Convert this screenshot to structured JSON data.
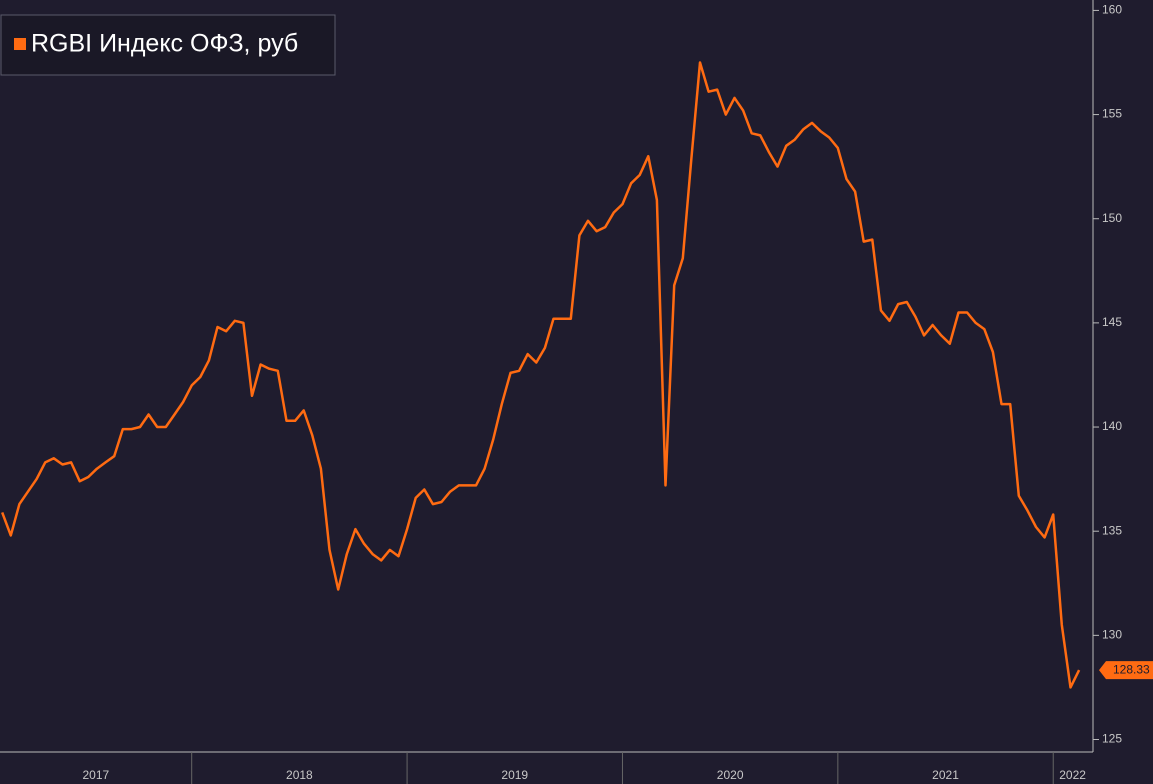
{
  "chart_data": {
    "type": "line",
    "x": [
      2017.12,
      2017.16,
      2017.2,
      2017.24,
      2017.28,
      2017.32,
      2017.36,
      2017.4,
      2017.44,
      2017.48,
      2017.52,
      2017.56,
      2017.6,
      2017.64,
      2017.68,
      2017.72,
      2017.76,
      2017.8,
      2017.84,
      2017.88,
      2017.92,
      2017.96,
      2018.0,
      2018.04,
      2018.08,
      2018.12,
      2018.16,
      2018.2,
      2018.24,
      2018.28,
      2018.32,
      2018.36,
      2018.4,
      2018.44,
      2018.48,
      2018.52,
      2018.56,
      2018.6,
      2018.64,
      2018.68,
      2018.72,
      2018.76,
      2018.8,
      2018.84,
      2018.88,
      2018.92,
      2018.96,
      2019.0,
      2019.04,
      2019.08,
      2019.12,
      2019.16,
      2019.2,
      2019.24,
      2019.28,
      2019.32,
      2019.36,
      2019.4,
      2019.44,
      2019.48,
      2019.52,
      2019.56,
      2019.6,
      2019.64,
      2019.68,
      2019.72,
      2019.76,
      2019.8,
      2019.84,
      2019.88,
      2019.92,
      2019.96,
      2020.0,
      2020.04,
      2020.08,
      2020.12,
      2020.16,
      2020.2,
      2020.24,
      2020.28,
      2020.32,
      2020.36,
      2020.4,
      2020.44,
      2020.48,
      2020.52,
      2020.56,
      2020.6,
      2020.64,
      2020.68,
      2020.72,
      2020.76,
      2020.8,
      2020.84,
      2020.88,
      2020.92,
      2020.96,
      2021.0,
      2021.04,
      2021.08,
      2021.12,
      2021.16,
      2021.2,
      2021.24,
      2021.28,
      2021.32,
      2021.36,
      2021.4,
      2021.44,
      2021.48,
      2021.52,
      2021.56,
      2021.6,
      2021.64,
      2021.68,
      2021.72,
      2021.76,
      2021.8,
      2021.84,
      2021.88,
      2021.92,
      2021.96,
      2022.0,
      2022.04,
      2022.08,
      2022.12
    ],
    "series": [
      {
        "name": "RGBI Индекс ОФЗ, руб",
        "color": "#ff6b12",
        "values": [
          135.9,
          134.8,
          136.3,
          136.9,
          137.5,
          138.3,
          138.5,
          138.2,
          138.3,
          137.4,
          137.6,
          138.0,
          138.3,
          138.6,
          139.9,
          139.9,
          140.0,
          140.6,
          140.0,
          140.0,
          140.6,
          141.2,
          142.0,
          142.4,
          143.2,
          144.8,
          144.6,
          145.1,
          145.0,
          141.5,
          143.0,
          142.8,
          142.7,
          140.3,
          140.3,
          140.8,
          139.6,
          138.0,
          134.1,
          132.2,
          133.9,
          135.1,
          134.4,
          133.9,
          133.6,
          134.1,
          133.8,
          135.1,
          136.6,
          137.0,
          136.3,
          136.4,
          136.9,
          137.2,
          137.2,
          137.2,
          138.0,
          139.4,
          141.1,
          142.6,
          142.7,
          143.5,
          143.1,
          143.8,
          145.2,
          145.2,
          145.2,
          149.2,
          149.9,
          149.4,
          149.6,
          150.3,
          150.7,
          151.7,
          152.1,
          153.0,
          150.9,
          137.2,
          146.8,
          148.1,
          152.9,
          157.5,
          156.1,
          156.2,
          155.0,
          155.8,
          155.2,
          154.1,
          154.0,
          153.2,
          152.5,
          153.5,
          153.8,
          154.3,
          154.6,
          154.2,
          153.9,
          153.4,
          151.9,
          151.3,
          148.9,
          149.0,
          145.6,
          145.1,
          145.9,
          146.0,
          145.3,
          144.4,
          144.9,
          144.4,
          144.0,
          145.5,
          145.5,
          145.0,
          144.7,
          143.6,
          141.1,
          141.1,
          136.7,
          136.0,
          135.2,
          134.7,
          135.8,
          130.5,
          127.5,
          128.33
        ]
      }
    ],
    "last_value": 128.33,
    "xlim": [
      2017.11,
      2022.18
    ],
    "xticks": [
      2017,
      2018,
      2019,
      2020,
      2021,
      2022
    ],
    "ylim": [
      124.4,
      160.5
    ],
    "yticks": [
      125,
      130,
      135,
      140,
      145,
      150,
      155,
      160
    ]
  }
}
